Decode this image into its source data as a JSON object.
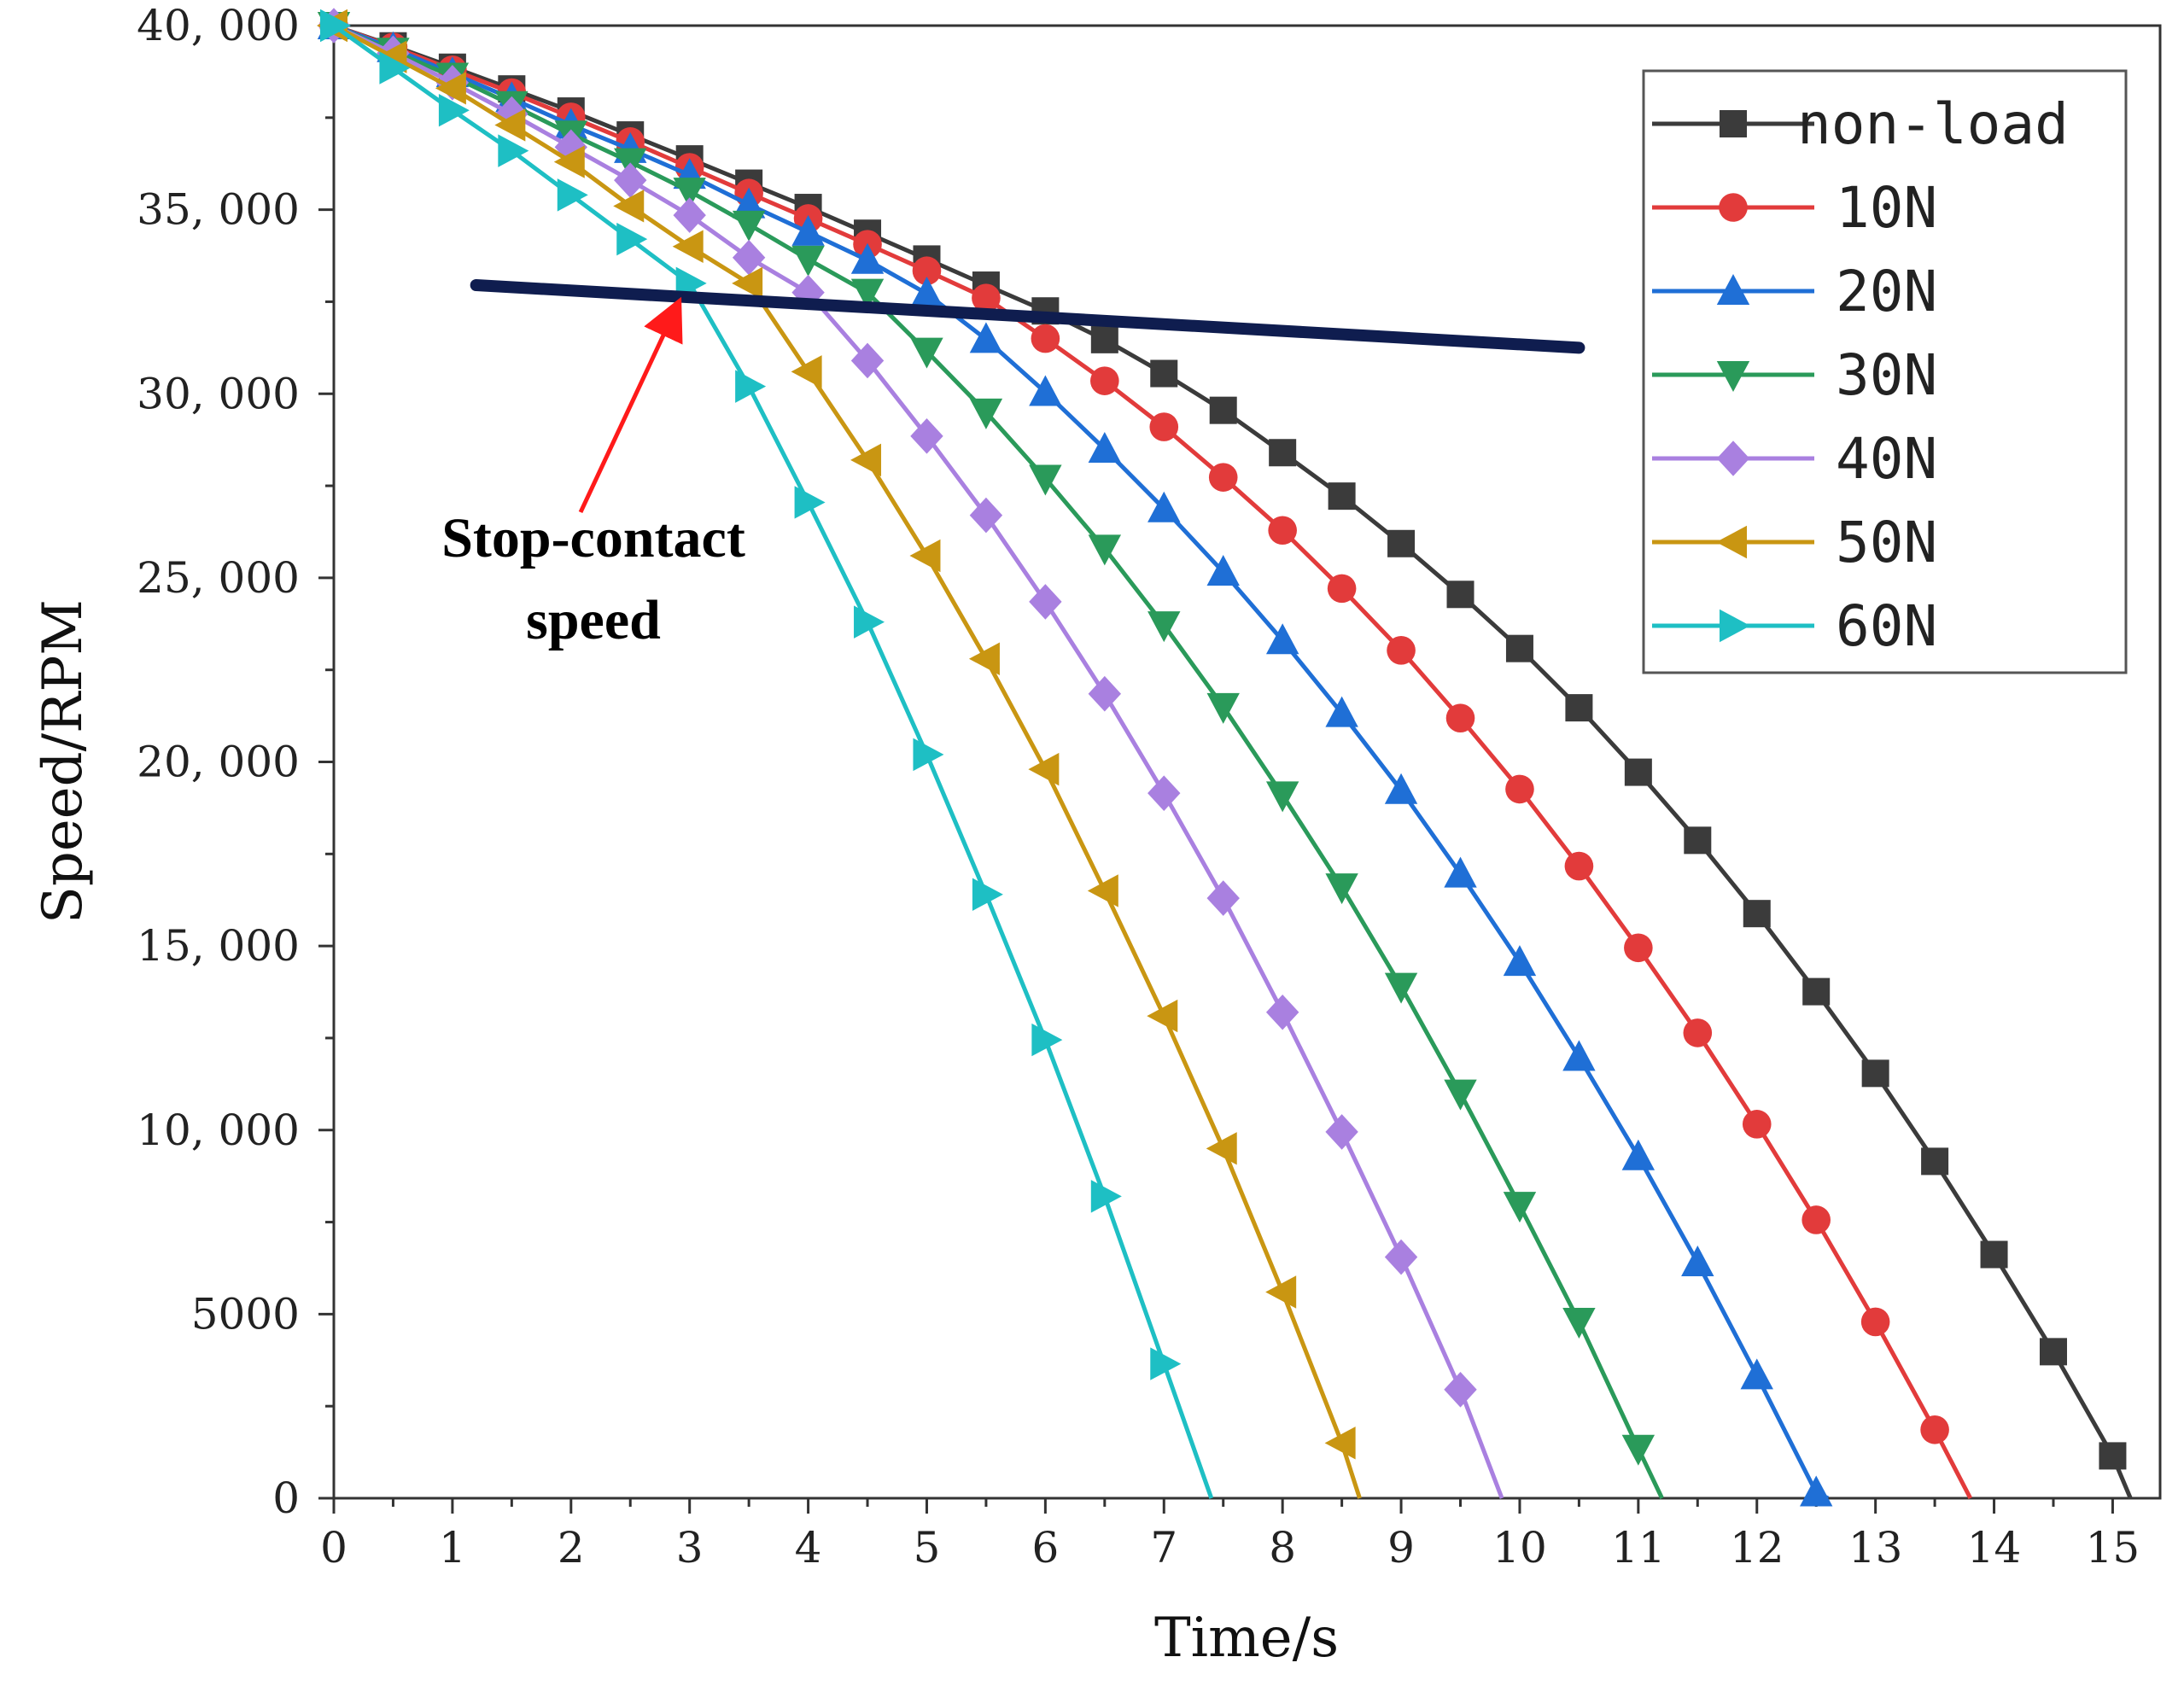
{
  "chart_data": {
    "type": "line",
    "title": "",
    "xlabel": "Time/s",
    "ylabel": "Speed/RPM",
    "xlim": [
      0,
      15.4
    ],
    "ylim": [
      0,
      40000
    ],
    "xticks": [
      0,
      1,
      2,
      3,
      4,
      5,
      6,
      7,
      8,
      9,
      10,
      11,
      12,
      13,
      14,
      15
    ],
    "xtick_labels": [
      "0",
      "1",
      "2",
      "3",
      "4",
      "5",
      "6",
      "7",
      "8",
      "9",
      "10",
      "11",
      "12",
      "13",
      "14",
      "15"
    ],
    "yticks": [
      0,
      5000,
      10000,
      15000,
      20000,
      25000,
      30000,
      35000,
      40000
    ],
    "ytick_labels": [
      "0",
      "5000",
      "10, 000",
      "15, 000",
      "20, 000",
      "25, 000",
      "30, 000",
      "35, 000",
      "40, 000"
    ],
    "grid": false,
    "legend_position": "top-right",
    "series": [
      {
        "name": "non-load",
        "color": "#3b3b3b",
        "marker": "square",
        "x": [
          0,
          0.5,
          1,
          1.5,
          2,
          2.5,
          3,
          3.5,
          4,
          4.5,
          5,
          5.5,
          6,
          6.5,
          7,
          7.5,
          8,
          8.5,
          9,
          9.5,
          10,
          10.5,
          11,
          11.5,
          12,
          12.5,
          13,
          13.5,
          14,
          14.5,
          15,
          15.15
        ],
        "y": [
          40000,
          39450,
          38870,
          38280,
          37680,
          37030,
          36380,
          35720,
          35060,
          34360,
          33660,
          32950,
          32250,
          31470,
          30550,
          29550,
          28400,
          27220,
          25930,
          24550,
          23080,
          21470,
          19720,
          17870,
          15880,
          13760,
          11540,
          9150,
          6620,
          3980,
          1150,
          0
        ]
      },
      {
        "name": "10N",
        "color": "#e23b3b",
        "marker": "circle",
        "x": [
          0,
          0.5,
          1,
          1.5,
          2,
          2.5,
          3,
          3.5,
          4,
          4.5,
          5,
          5.5,
          6,
          6.5,
          7,
          7.5,
          8,
          8.5,
          9,
          9.5,
          10,
          10.5,
          11,
          11.5,
          12,
          12.5,
          13,
          13.5,
          13.8
        ],
        "y": [
          40000,
          39420,
          38800,
          38180,
          37520,
          36850,
          36150,
          35450,
          34760,
          34060,
          33340,
          32600,
          31500,
          30350,
          29100,
          27730,
          26290,
          24710,
          23030,
          21190,
          19260,
          17170,
          14950,
          12640,
          10160,
          7560,
          4790,
          1860,
          0
        ]
      },
      {
        "name": "20N",
        "color": "#1f6fd6",
        "marker": "triangle-up",
        "x": [
          0,
          0.5,
          1,
          1.5,
          2,
          2.5,
          3,
          3.5,
          4,
          4.5,
          5,
          5.5,
          6,
          6.5,
          7,
          7.5,
          8,
          8.5,
          9,
          9.5,
          10,
          10.5,
          11,
          11.5,
          12,
          12.5,
          12.6
        ],
        "y": [
          40000,
          39380,
          38700,
          38020,
          37300,
          36640,
          35940,
          35140,
          34390,
          33630,
          32720,
          31480,
          30040,
          28500,
          26880,
          25160,
          23300,
          21320,
          19230,
          16960,
          14560,
          11980,
          9280,
          6400,
          3330,
          150,
          0
        ]
      },
      {
        "name": "30N",
        "color": "#2a9a5a",
        "marker": "triangle-down",
        "x": [
          0,
          0.5,
          1,
          1.5,
          2,
          2.5,
          3,
          3.5,
          4,
          4.5,
          5,
          5.5,
          6,
          6.5,
          7,
          7.5,
          8,
          8.5,
          9,
          9.5,
          10,
          10.5,
          11,
          11.2
        ],
        "y": [
          40000,
          39300,
          38620,
          37850,
          37050,
          36300,
          35500,
          34600,
          33650,
          32750,
          31150,
          29500,
          27700,
          25800,
          23720,
          21500,
          19100,
          16600,
          13900,
          11000,
          7950,
          4800,
          1350,
          0
        ]
      },
      {
        "name": "40N",
        "color": "#a980e0",
        "marker": "diamond",
        "x": [
          0,
          0.5,
          1,
          1.5,
          2,
          2.5,
          3,
          3.5,
          4,
          4.5,
          5,
          5.5,
          6,
          6.5,
          7,
          7.5,
          8,
          8.5,
          9,
          9.5,
          9.85
        ],
        "y": [
          40000,
          39250,
          38450,
          37600,
          36700,
          35800,
          34850,
          33700,
          32750,
          30900,
          28850,
          26700,
          24350,
          21850,
          19150,
          16300,
          13200,
          9950,
          6550,
          2950,
          0
        ]
      },
      {
        "name": "50N",
        "color": "#c99612",
        "marker": "triangle-left",
        "x": [
          0,
          0.5,
          1,
          1.5,
          2,
          2.5,
          3,
          3.5,
          4,
          4.5,
          5,
          5.5,
          6,
          6.5,
          7,
          7.5,
          8,
          8.5,
          8.65
        ],
        "y": [
          40000,
          39150,
          38300,
          37300,
          36300,
          35100,
          34000,
          33000,
          30600,
          28200,
          25600,
          22800,
          19800,
          16500,
          13100,
          9500,
          5600,
          1500,
          0
        ]
      },
      {
        "name": "60N",
        "color": "#1ebfc4",
        "marker": "triangle-right",
        "x": [
          0,
          0.5,
          1,
          1.5,
          2,
          2.5,
          3,
          3.5,
          4,
          4.5,
          5,
          5.5,
          6,
          6.5,
          7,
          7.4
        ],
        "y": [
          40000,
          38850,
          37700,
          36600,
          35400,
          34200,
          33000,
          30200,
          27050,
          23800,
          20200,
          16400,
          12450,
          8200,
          3650,
          0
        ]
      }
    ],
    "stop_contact_line": {
      "x": [
        1.2,
        10.5
      ],
      "y": [
        32950,
        31250
      ],
      "color": "#0f1d4f"
    },
    "annotation": {
      "text_line1": "Stop-contact",
      "text_line2": "speed",
      "arrow_color": "#ff1a1a",
      "arrow_target": {
        "x": 2.9,
        "y": 32700
      }
    }
  }
}
